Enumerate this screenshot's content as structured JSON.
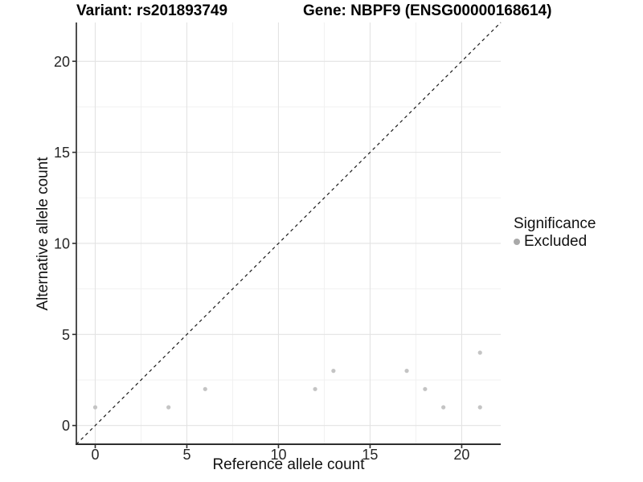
{
  "header": {
    "left_title": "Variant: rs201893749",
    "right_title": "Gene: NBPF9 (ENSG00000168614)"
  },
  "chart_data": {
    "type": "scatter",
    "title": "Variant: rs201893749 | Gene: NBPF9 (ENSG00000168614)",
    "xlabel": "Reference allele count",
    "ylabel": "Alternative allele count",
    "xlim": [
      -1.03,
      22.13
    ],
    "ylim": [
      -1.03,
      22.13
    ],
    "x_ticks": [
      0,
      5,
      10,
      15,
      20
    ],
    "y_ticks": [
      0,
      5,
      10,
      15,
      20
    ],
    "x_minor_ticks": [
      2.5,
      7.5,
      12.5,
      17.5
    ],
    "y_minor_ticks": [
      2.5,
      7.5,
      12.5,
      17.5
    ],
    "grid": "major and minor, light grey on white",
    "legend_position": "right",
    "identity_line": {
      "style": "dashed",
      "color": "#1a1a1a",
      "equation": "y = x"
    },
    "series": [
      {
        "name": "Excluded",
        "color": "#c4c4c4",
        "points": [
          [
            0,
            1
          ],
          [
            4,
            1
          ],
          [
            6,
            2
          ],
          [
            12,
            2
          ],
          [
            13,
            3
          ],
          [
            17,
            3
          ],
          [
            18,
            2
          ],
          [
            19,
            1
          ],
          [
            21,
            1
          ],
          [
            21,
            4
          ]
        ]
      }
    ]
  },
  "legend": {
    "title": "Significance",
    "items": [
      {
        "label": "Excluded",
        "marker": "circle",
        "color": "#a9a9a9"
      }
    ]
  },
  "colors": {
    "background": "#ffffff",
    "grid_major": "#e3e3e3",
    "grid_minor": "#f1f1f1",
    "axis_line": "#2e2e2e",
    "tick_text": "#262626",
    "title_text": "#000000"
  }
}
